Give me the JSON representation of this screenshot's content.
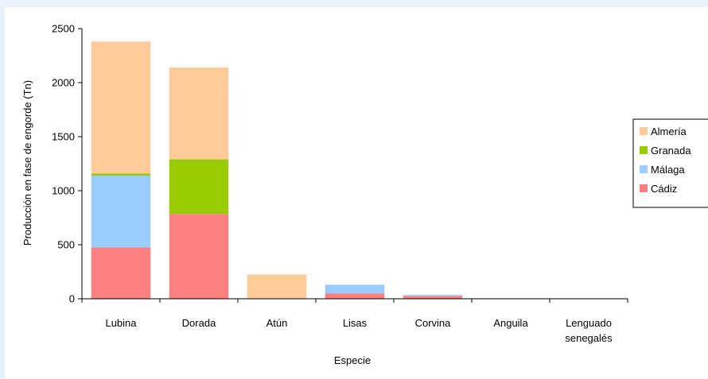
{
  "chart_data": {
    "type": "bar",
    "stacked": true,
    "title": "",
    "xlabel": "Especie",
    "ylabel": "Producción en fase de engorde (Tn)",
    "ylim": [
      0,
      2500
    ],
    "yticks": [
      0,
      500,
      1000,
      1500,
      2000,
      2500
    ],
    "categories": [
      "Lubina",
      "Dorada",
      "Atún",
      "Lisas",
      "Corvina",
      "Anguila",
      "Lenguado senegalés"
    ],
    "category_label_lines": [
      [
        "Lubina"
      ],
      [
        "Dorada"
      ],
      [
        "Atún"
      ],
      [
        "Lisas"
      ],
      [
        "Corvina"
      ],
      [
        "Anguila"
      ],
      [
        "Lenguado",
        "senegalés"
      ]
    ],
    "series": [
      {
        "name": "Cádiz",
        "color": "#ff8080",
        "values": [
          475,
          785,
          0,
          50,
          25,
          0,
          0
        ]
      },
      {
        "name": "Málaga",
        "color": "#99ccff",
        "values": [
          665,
          0,
          0,
          80,
          10,
          0,
          0
        ]
      },
      {
        "name": "Granada",
        "color": "#99cc00",
        "values": [
          20,
          505,
          0,
          0,
          0,
          0,
          0
        ]
      },
      {
        "name": "Almería",
        "color": "#ffcc99",
        "values": [
          1220,
          850,
          225,
          0,
          0,
          0,
          0
        ]
      }
    ],
    "legend": {
      "position": "right",
      "order": [
        "Almería",
        "Granada",
        "Málaga",
        "Cádiz"
      ]
    },
    "grid": false
  }
}
